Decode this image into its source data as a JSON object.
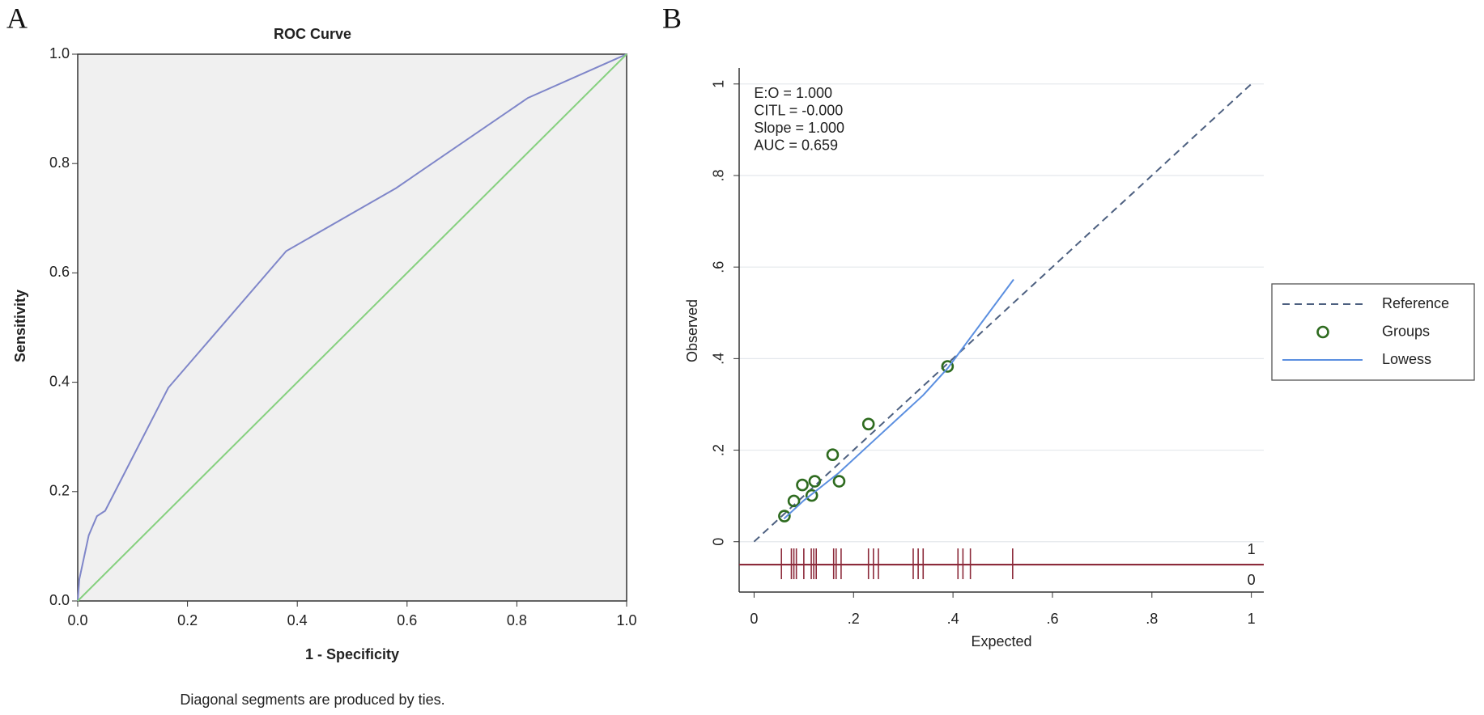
{
  "chart_data": [
    {
      "type": "line",
      "panel_label": "A",
      "title": "ROC Curve",
      "x_label": "1 - Specificity",
      "y_label": "Sensitivity",
      "note": "Diagonal segments are produced by ties.",
      "background": "#f0f0f0",
      "xlim": [
        0,
        1
      ],
      "ylim": [
        0,
        1
      ],
      "xticks": [
        {
          "value": 0,
          "label": "0.0"
        },
        {
          "value": 0.2,
          "label": "0.2"
        },
        {
          "value": 0.4,
          "label": "0.4"
        },
        {
          "value": 0.6,
          "label": "0.6"
        },
        {
          "value": 0.8,
          "label": "0.8"
        },
        {
          "value": 1,
          "label": "1.0"
        }
      ],
      "yticks": [
        {
          "value": 0,
          "label": "0.0"
        },
        {
          "value": 0.2,
          "label": "0.2"
        },
        {
          "value": 0.4,
          "label": "0.4"
        },
        {
          "value": 0.6,
          "label": "0.6"
        },
        {
          "value": 0.8,
          "label": "0.8"
        },
        {
          "value": 1,
          "label": "1.0"
        }
      ],
      "series": [
        {
          "color": "#7f86c9",
          "x": [
            0,
            0.003,
            0.02,
            0.035,
            0.05,
            0.165,
            0.38,
            0.58,
            0.82,
            1
          ],
          "values": [
            0,
            0.04,
            0.12,
            0.155,
            0.165,
            0.39,
            0.64,
            0.755,
            0.92,
            1
          ]
        },
        {
          "color": "#86d07f",
          "x": [
            0,
            1
          ],
          "values": [
            0,
            1
          ]
        }
      ]
    },
    {
      "type": "line",
      "panel_label": "B",
      "x_label": "Expected",
      "y_label": "Observed",
      "annotations": [
        "E:O = 1.000",
        "CITL = -0.000",
        "Slope = 1.000",
        "AUC = 0.659"
      ],
      "xlim": [
        -0.03,
        1.025
      ],
      "ylim": [
        -0.11,
        1.035
      ],
      "grid": true,
      "legend": "right",
      "xticks": [
        0,
        {
          "value": 0.2,
          "label": ".2"
        },
        {
          "value": 0.4,
          "label": ".4"
        },
        {
          "value": 0.6,
          "label": ".6"
        },
        {
          "value": 0.8,
          "label": ".8"
        },
        1
      ],
      "yticks": [
        0,
        {
          "value": 0.2,
          "label": ".2"
        },
        {
          "value": 0.4,
          "label": ".4"
        },
        {
          "value": 0.6,
          "label": ".6"
        },
        {
          "value": 0.8,
          "label": ".8"
        },
        1
      ],
      "series": [
        {
          "name": "Reference",
          "color": "#4d6080",
          "dash": true,
          "x": [
            0,
            1
          ],
          "values": [
            0,
            1
          ]
        },
        {
          "name": "Groups",
          "color": "#2e6b1f",
          "marker": "circle",
          "x": [
            0.061,
            0.08,
            0.097,
            0.116,
            0.122,
            0.158,
            0.171,
            0.23,
            0.389
          ],
          "values": [
            0.056,
            0.089,
            0.124,
            0.101,
            0.132,
            0.19,
            0.132,
            0.257,
            0.383
          ]
        },
        {
          "name": "Lowess",
          "color": "#5b8fe0",
          "x": [
            0.06,
            0.1,
            0.17,
            0.24,
            0.33,
            0.34,
            0.39,
            0.522
          ],
          "values": [
            0.05,
            0.09,
            0.15,
            0.22,
            0.31,
            0.32,
            0.38,
            0.573
          ]
        }
      ],
      "rug": {
        "color": "#8c2a3a",
        "y": -0.05,
        "labels": [
          "1",
          "0"
        ],
        "x": [
          0.055,
          0.075,
          0.08,
          0.085,
          0.1,
          0.115,
          0.12,
          0.125,
          0.16,
          0.165,
          0.175,
          0.23,
          0.24,
          0.25,
          0.32,
          0.33,
          0.34,
          0.41,
          0.42,
          0.435,
          0.52
        ]
      }
    }
  ]
}
